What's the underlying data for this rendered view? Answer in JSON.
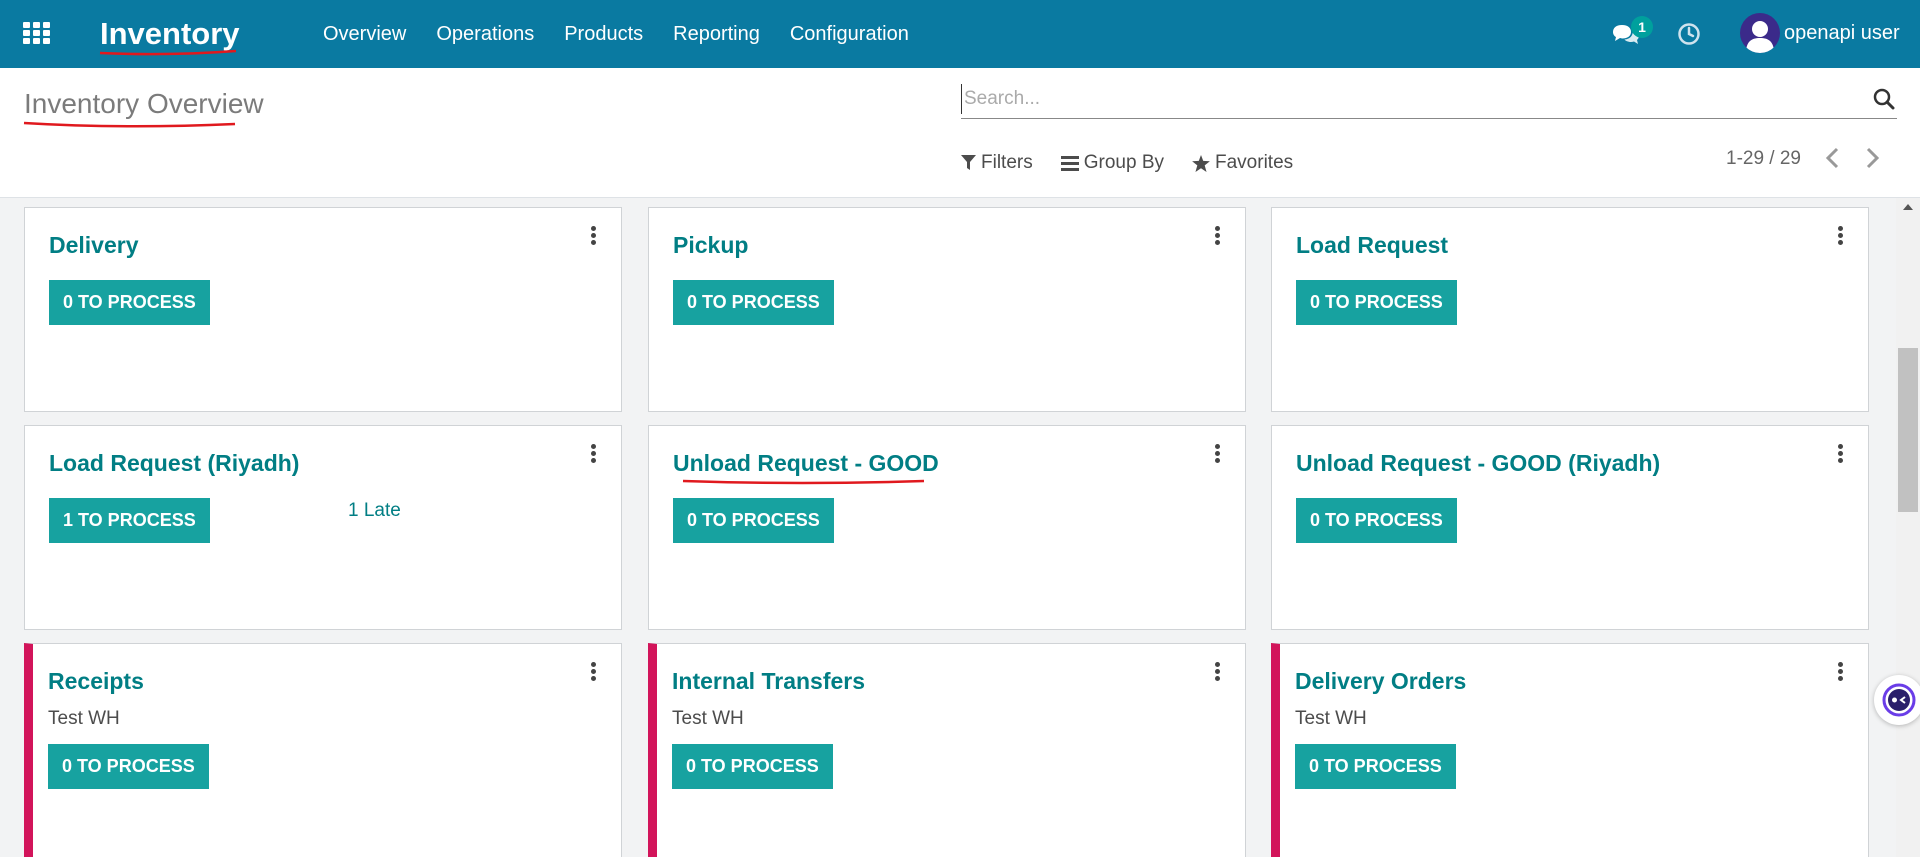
{
  "navbar": {
    "app_name": "Inventory",
    "menu": [
      "Overview",
      "Operations",
      "Products",
      "Reporting",
      "Configuration"
    ],
    "chat_count": "1",
    "user_name": "openapi user",
    "bg_color": "#0a7aa1"
  },
  "control_panel": {
    "title": "Inventory Overview",
    "search_placeholder": "Search...",
    "filters_label": "Filters",
    "group_by_label": "Group By",
    "favorites_label": "Favorites",
    "pager": "1-29 / 29"
  },
  "cards": [
    {
      "title": "Delivery",
      "button": "0 TO PROCESS"
    },
    {
      "title": "Pickup",
      "button": "0 TO PROCESS"
    },
    {
      "title": "Load Request",
      "button": "0 TO PROCESS"
    },
    {
      "title": "Load Request (Riyadh)",
      "button": "1 TO PROCESS",
      "late": "1 Late"
    },
    {
      "title": "Unload Request - GOOD",
      "button": "0 TO PROCESS"
    },
    {
      "title": "Unload Request - GOOD (Riyadh)",
      "button": "0 TO PROCESS"
    },
    {
      "title": "Receipts",
      "subtitle": "Test WH",
      "button": "0 TO PROCESS"
    },
    {
      "title": "Internal Transfers",
      "subtitle": "Test WH",
      "button": "0 TO PROCESS"
    },
    {
      "title": "Delivery Orders",
      "subtitle": "Test WH",
      "button": "0 TO PROCESS"
    }
  ],
  "colors": {
    "accent_teal": "#017e84",
    "button_teal": "#17a2a0",
    "warehouse_stripe": "#d2145a",
    "annotation_red": "#e0191e"
  }
}
